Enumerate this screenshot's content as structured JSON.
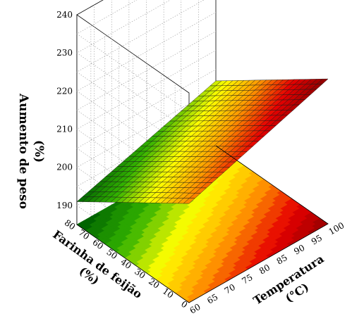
{
  "chart_data": {
    "type": "surface3d",
    "title": "",
    "xlabel": [
      "Temperatura",
      "(°C)"
    ],
    "ylabel": [
      "Farinha de feijão",
      "(%)"
    ],
    "zlabel": [
      "Aumento de peso",
      "(%)"
    ],
    "x_ticks": [
      "60",
      "65",
      "70",
      "75",
      "80",
      "85",
      "90",
      "95",
      "100"
    ],
    "y_ticks": [
      "0",
      "10",
      "20",
      "30",
      "40",
      "50",
      "60",
      "70",
      "80"
    ],
    "z_ticks": [
      "190",
      "200",
      "210",
      "220",
      "230",
      "240"
    ],
    "xlim": [
      60,
      100
    ],
    "ylim": [
      0,
      80
    ],
    "zlim": [
      185,
      240
    ],
    "surface_corners": [
      {
        "x": 60,
        "y": 0,
        "z": 211
      },
      {
        "x": 100,
        "y": 0,
        "z": 223
      },
      {
        "x": 60,
        "y": 80,
        "z": 191
      },
      {
        "x": 100,
        "y": 80,
        "z": 202
      }
    ],
    "colormap": [
      "#006400",
      "#33b300",
      "#ffff00",
      "#ff9900",
      "#e60000",
      "#8b0000"
    ],
    "grid": true,
    "legend": "none"
  }
}
